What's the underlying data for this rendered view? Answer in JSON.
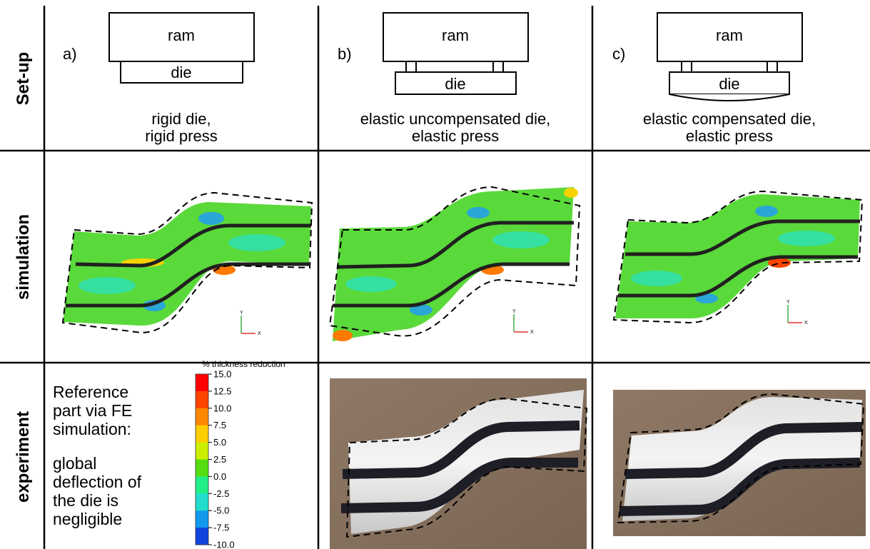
{
  "rows": [
    "Set-up",
    "simulation",
    "experiment"
  ],
  "columns": [
    {
      "letter": "a)",
      "ram_label": "ram",
      "die_label": "die",
      "caption_lines": [
        "rigid die,",
        "rigid press"
      ]
    },
    {
      "letter": "b)",
      "ram_label": "ram",
      "die_label": "die",
      "caption_lines": [
        "elastic uncompensated die,",
        "elastic press"
      ]
    },
    {
      "letter": "c)",
      "ram_label": "ram",
      "die_label": "die",
      "caption_lines": [
        "elastic compensated die,",
        "elastic press"
      ]
    }
  ],
  "reference_note": {
    "lines_1": [
      "Reference",
      "part via FE",
      "simulation:"
    ],
    "lines_2": [
      "global",
      "deflection of",
      "the die is",
      "negligible"
    ]
  },
  "legend": {
    "title": "% thickness reduction",
    "ticks": [
      "15.0",
      "12.5",
      "10.0",
      "7.5",
      "5.0",
      "2.5",
      "0.0",
      "-2.5",
      "-5.0",
      "-7.5",
      "-10.0"
    ],
    "colors": [
      "#ff0000",
      "#ff4400",
      "#ff8800",
      "#ffcc00",
      "#ccee00",
      "#55dd11",
      "#22ee88",
      "#22ddcc",
      "#1199ee",
      "#1144dd",
      "#0000aa"
    ]
  },
  "axis_triad": {
    "y": "Y",
    "x": "X"
  }
}
